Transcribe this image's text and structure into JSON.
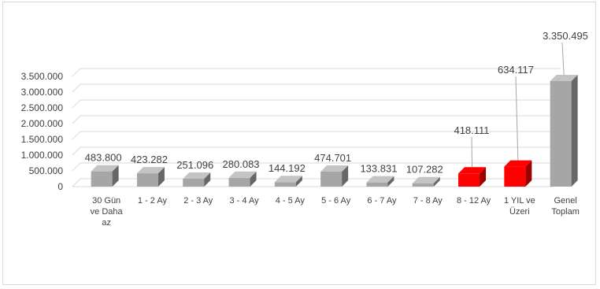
{
  "chart_data": {
    "type": "bar",
    "style": "3d-column",
    "title": "",
    "xlabel": "",
    "ylabel": "",
    "ylim": [
      0,
      3500000
    ],
    "grid": true,
    "legend": "none",
    "y_ticks": [
      "0",
      "500.000",
      "1.000.000",
      "1.500.000",
      "2.000.000",
      "2.500.000",
      "3.000.000",
      "3.500.000"
    ],
    "categories": [
      [
        "30 Gün",
        "ve Daha",
        "az"
      ],
      [
        "1 - 2 Ay"
      ],
      [
        "2 - 3 Ay"
      ],
      [
        "3 - 4 Ay"
      ],
      [
        "4 - 5 Ay"
      ],
      [
        "5 - 6 Ay"
      ],
      [
        "6 - 7 Ay"
      ],
      [
        "7 - 8 Ay"
      ],
      [
        "8 - 12 Ay"
      ],
      [
        "1 YIL ve",
        "Üzeri"
      ],
      [
        "Genel",
        "Toplam"
      ]
    ],
    "values": [
      483800,
      423282,
      251096,
      280083,
      144192,
      474701,
      133831,
      107282,
      418111,
      634117,
      3350495
    ],
    "value_labels": [
      "483.800",
      "423.282",
      "251.096",
      "280.083",
      "144.192",
      "474.701",
      "133.831",
      "107.282",
      "418.111",
      "634.117",
      "3.350.495"
    ],
    "colors": [
      "#a6a6a6",
      "#a6a6a6",
      "#a6a6a6",
      "#a6a6a6",
      "#a6a6a6",
      "#a6a6a6",
      "#a6a6a6",
      "#a6a6a6",
      "#ff0000",
      "#ff0000",
      "#a6a6a6"
    ],
    "gridline_color": "#d9d9d9"
  }
}
